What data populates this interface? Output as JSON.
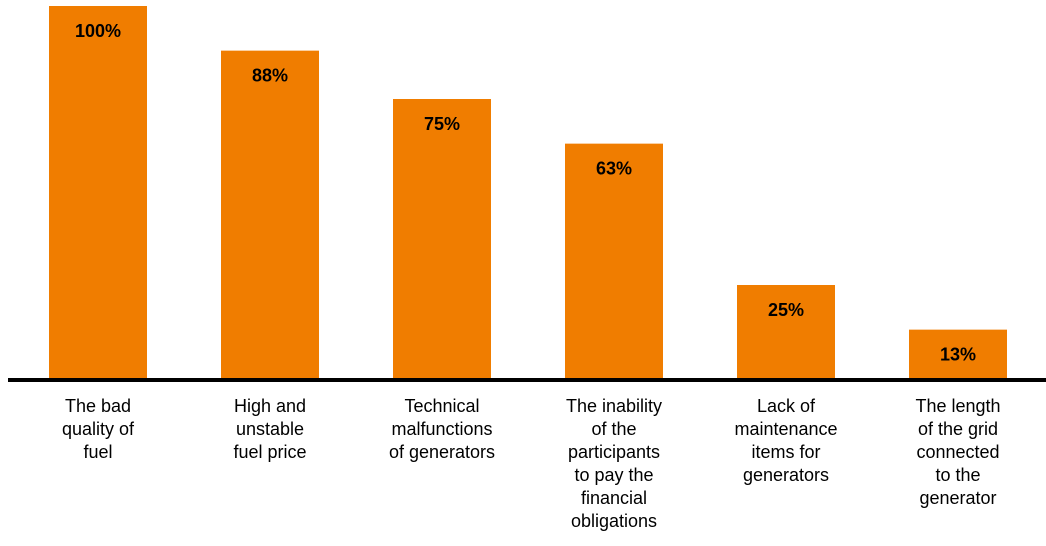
{
  "chart_data": {
    "type": "bar",
    "title": "",
    "xlabel": "",
    "ylabel": "",
    "ylim": [
      0,
      100
    ],
    "grid": false,
    "legend": "none",
    "bar_color": "#F07D00",
    "axis_color": "#000000",
    "categories": [
      [
        "The bad",
        "quality of",
        "fuel"
      ],
      [
        "High and",
        "unstable",
        "fuel price"
      ],
      [
        "Technical",
        "malfunctions",
        "of generators"
      ],
      [
        "The inability",
        "of the",
        "participants",
        "to pay the",
        "financial",
        "obligations"
      ],
      [
        "Lack of",
        "maintenance",
        "items for",
        "generators"
      ],
      [
        "The length",
        "of the grid",
        "connected",
        "to the",
        "generator"
      ]
    ],
    "values": [
      100,
      88,
      75,
      63,
      25,
      13
    ],
    "data_labels": [
      "100%",
      "88%",
      "75%",
      "63%",
      "25%",
      "13%"
    ]
  }
}
